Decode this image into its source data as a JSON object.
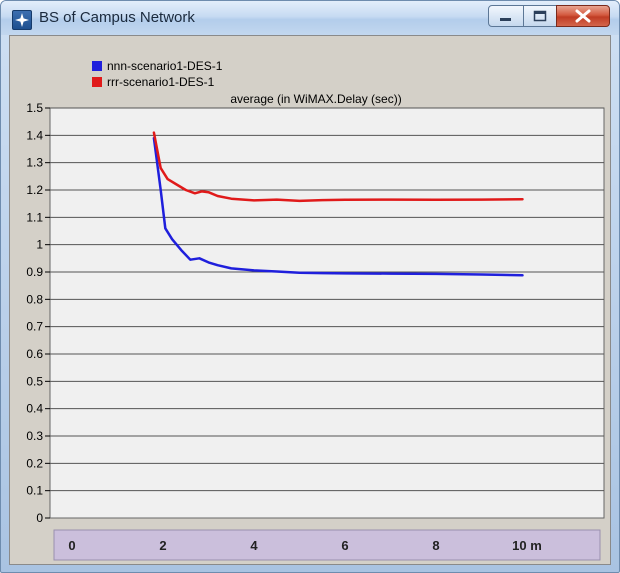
{
  "window": {
    "title": "BS of Campus Network",
    "icon": "network-star-icon",
    "controls": [
      "minimize-icon",
      "maximize-icon",
      "close-icon"
    ],
    "colors": {
      "title_bar": "#c7dbf2",
      "close_button": "#c8432b"
    }
  },
  "chart_data": {
    "type": "line",
    "title": "average (in WiMAX.Delay (sec))",
    "xlabel": "",
    "ylabel": "",
    "x_unit": "m",
    "xlim": [
      0,
      11
    ],
    "ylim": [
      0,
      1.5
    ],
    "x_ticks": [
      {
        "value": 0,
        "label": "0"
      },
      {
        "value": 2,
        "label": "2"
      },
      {
        "value": 4,
        "label": "4"
      },
      {
        "value": 6,
        "label": "6"
      },
      {
        "value": 8,
        "label": "8"
      },
      {
        "value": 10,
        "label": "10 m"
      }
    ],
    "y_ticks": [
      {
        "value": 0,
        "label": "0"
      },
      {
        "value": 0.1,
        "label": "0.1"
      },
      {
        "value": 0.2,
        "label": "0.2"
      },
      {
        "value": 0.3,
        "label": "0.3"
      },
      {
        "value": 0.4,
        "label": "0.4"
      },
      {
        "value": 0.5,
        "label": "0.5"
      },
      {
        "value": 0.6,
        "label": "0.6"
      },
      {
        "value": 0.7,
        "label": "0.7"
      },
      {
        "value": 0.8,
        "label": "0.8"
      },
      {
        "value": 0.9,
        "label": "0.9"
      },
      {
        "value": 1,
        "label": "1"
      },
      {
        "value": 1.1,
        "label": "1.1"
      },
      {
        "value": 1.2,
        "label": "1.2"
      },
      {
        "value": 1.3,
        "label": "1.3"
      },
      {
        "value": 1.4,
        "label": "1.4"
      },
      {
        "value": 1.5,
        "label": "1.5"
      }
    ],
    "grid": true,
    "legend_position": "top-left",
    "colors": {
      "plot_background": "#f0f0f0",
      "frame_background": "#d4d0c8",
      "x_axis_band": "#cbbfdc"
    },
    "series": [
      {
        "name": "nnn-scenario1-DES-1",
        "color": "#1f1fdc",
        "x": [
          1.8,
          1.95,
          2.05,
          2.2,
          2.4,
          2.6,
          2.8,
          3.0,
          3.2,
          3.5,
          4.0,
          4.5,
          5.0,
          5.5,
          6.0,
          7.0,
          8.0,
          9.0,
          9.9
        ],
        "y": [
          1.39,
          1.2,
          1.06,
          1.02,
          0.98,
          0.945,
          0.95,
          0.935,
          0.925,
          0.913,
          0.906,
          0.902,
          0.897,
          0.896,
          0.895,
          0.894,
          0.893,
          0.891,
          0.888
        ]
      },
      {
        "name": "rrr-scenario1-DES-1",
        "color": "#e01a1a",
        "x": [
          1.8,
          1.95,
          2.1,
          2.3,
          2.5,
          2.7,
          2.85,
          3.0,
          3.2,
          3.5,
          4.0,
          4.5,
          5.0,
          5.5,
          6.0,
          7.0,
          8.0,
          9.0,
          9.9
        ],
        "y": [
          1.41,
          1.28,
          1.24,
          1.22,
          1.2,
          1.188,
          1.195,
          1.192,
          1.178,
          1.168,
          1.162,
          1.165,
          1.16,
          1.163,
          1.164,
          1.165,
          1.164,
          1.165,
          1.166
        ]
      }
    ]
  }
}
